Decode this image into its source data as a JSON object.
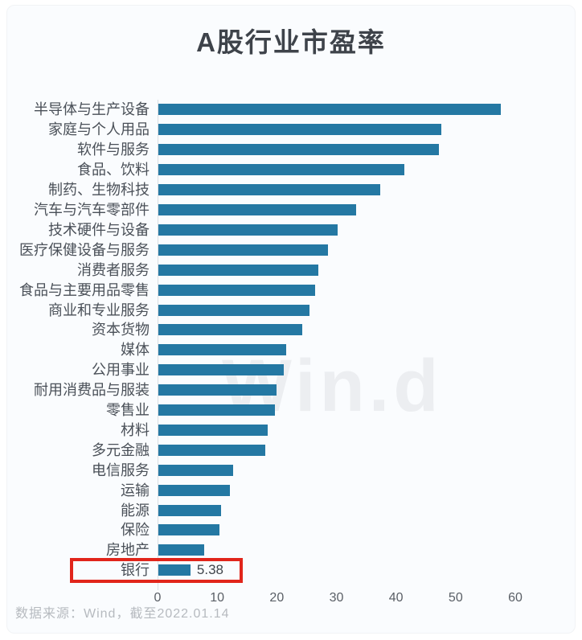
{
  "title": "A股行业市盈率",
  "watermark": "Win.d",
  "source_note": "数据来源：Wind，截至2022.01.14",
  "colors": {
    "bar": "#2478a3",
    "highlight_box": "#e1251b",
    "title_text": "#3e434a",
    "label_text": "#4a5058",
    "tick_text": "#5a5f66",
    "source_text": "#b6babf",
    "card_background": "#fafcfe",
    "axis_line": "#dbdfe3",
    "watermark_text": "#eceef1"
  },
  "chart_data": {
    "type": "bar",
    "orientation": "horizontal",
    "title": "A股行业市盈率",
    "xlabel": "",
    "ylabel": "",
    "xlim": [
      0,
      60
    ],
    "x_ticks": [
      0,
      10,
      20,
      30,
      40,
      50,
      60
    ],
    "grid": false,
    "categories": [
      "半导体与生产设备",
      "家庭与个人用品",
      "软件与服务",
      "食品、饮料",
      "制药、生物科技",
      "汽车与汽车零部件",
      "技术硬件与设备",
      "医疗保健设备与服务",
      "消费者服务",
      "食品与主要用品零售",
      "商业和专业服务",
      "资本货物",
      "媒体",
      "公用事业",
      "耐用消费品与服装",
      "零售业",
      "材料",
      "多元金融",
      "电信服务",
      "运输",
      "能源",
      "保险",
      "房地产",
      "银行"
    ],
    "values": [
      57.5,
      47.5,
      47.0,
      41.3,
      37.2,
      33.2,
      30.0,
      28.4,
      26.8,
      26.3,
      25.3,
      24.1,
      21.4,
      21.0,
      19.8,
      19.6,
      18.4,
      17.9,
      12.5,
      12.0,
      10.5,
      10.2,
      7.7,
      5.38
    ],
    "highlight": {
      "category": "银行",
      "value_label": "5.38"
    }
  }
}
